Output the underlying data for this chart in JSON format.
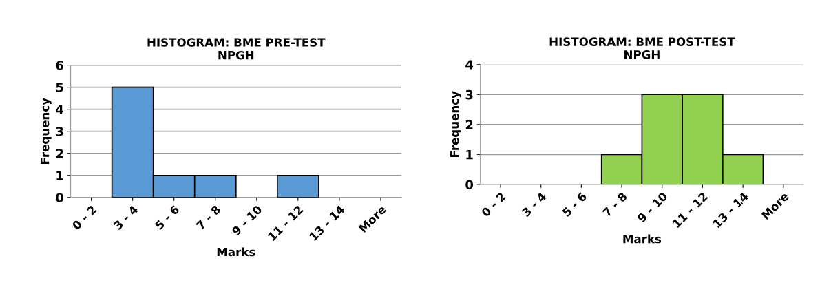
{
  "chart_data": [
    {
      "type": "bar",
      "title": "HISTOGRAM: BME PRE-TEST\nNPGH",
      "xlabel": "Marks",
      "ylabel": "Frequency",
      "categories": [
        "0 - 2",
        "3 - 4",
        "5 - 6",
        "7 - 8",
        "9 - 10",
        "11 - 12",
        "13 - 14",
        "More"
      ],
      "values": [
        0,
        5,
        1,
        1,
        0,
        1,
        0,
        0
      ],
      "color": "#5b9bd5",
      "ylim": [
        0,
        6
      ],
      "yticks": [
        0,
        1,
        2,
        3,
        4,
        5,
        6
      ],
      "grid": "y"
    },
    {
      "type": "bar",
      "title": "HISTOGRAM: BME POST-TEST\nNPGH",
      "xlabel": "Marks",
      "ylabel": "Frequency",
      "categories": [
        "0 - 2",
        "3 - 4",
        "5 - 6",
        "7 - 8",
        "9 - 10",
        "11 - 12",
        "13 - 14",
        "More"
      ],
      "values": [
        0,
        0,
        0,
        1,
        3,
        3,
        1,
        0
      ],
      "color": "#92d050",
      "ylim": [
        0,
        4
      ],
      "yticks": [
        0,
        1,
        2,
        3,
        4
      ],
      "grid": "y"
    }
  ]
}
